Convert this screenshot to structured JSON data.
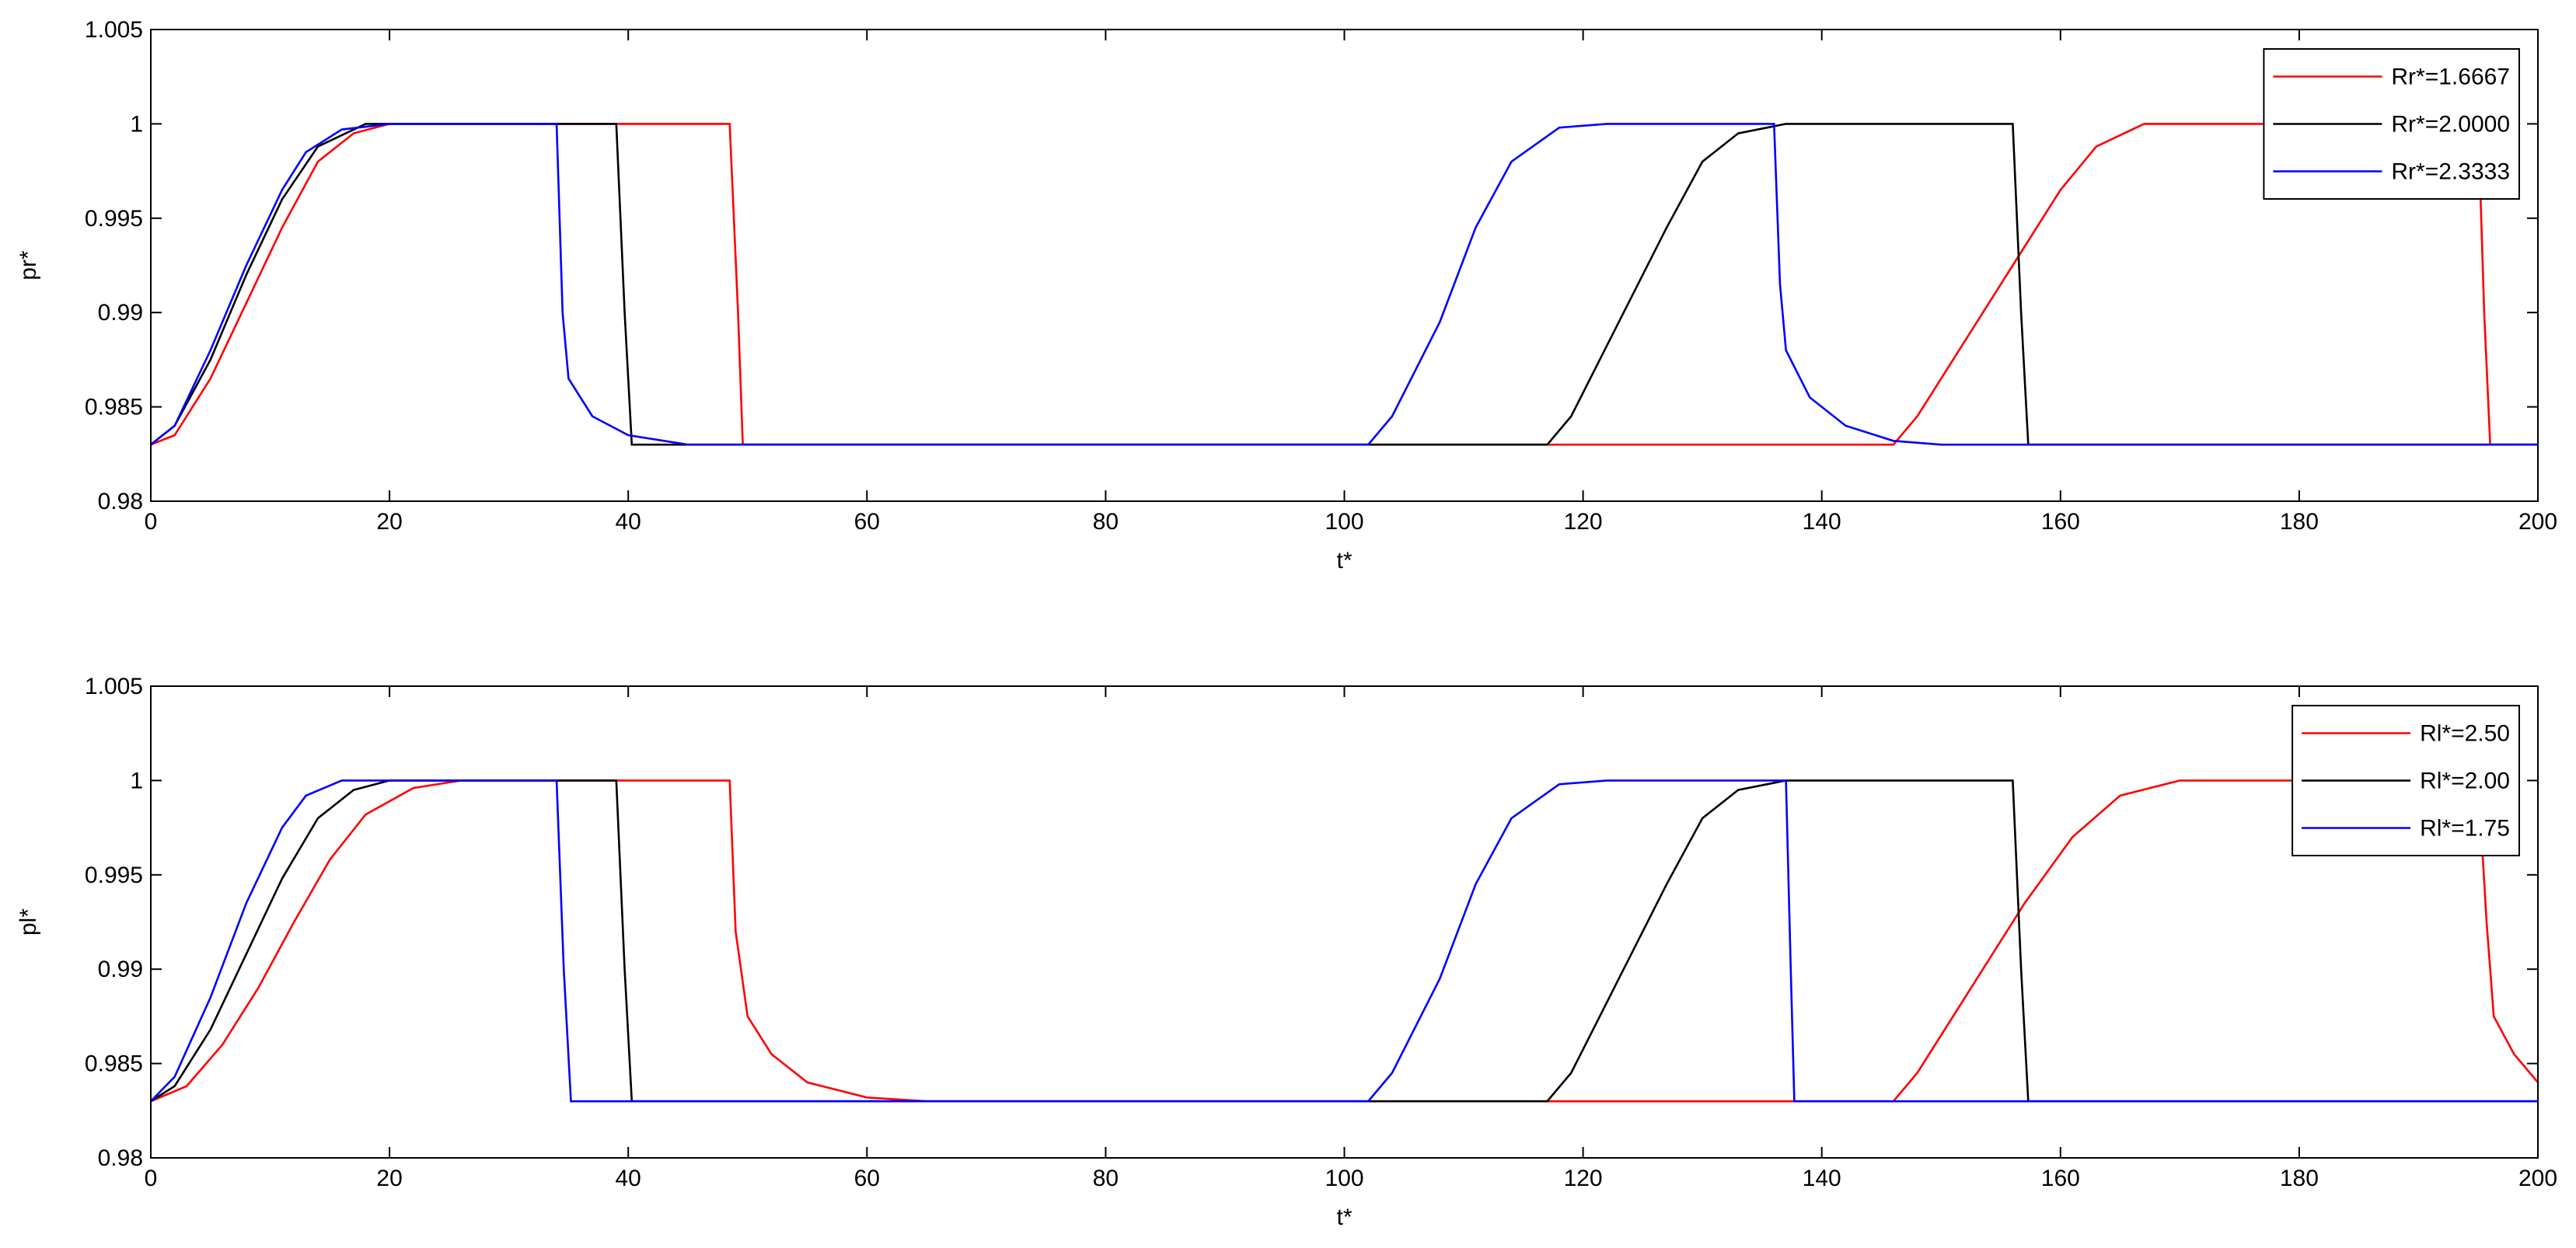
{
  "chart_data": [
    {
      "type": "line",
      "xlabel": "t*",
      "ylabel": "pr*",
      "xlim": [
        0,
        200
      ],
      "ylim": [
        0.98,
        1.005
      ],
      "xticks": [
        0,
        20,
        40,
        60,
        80,
        100,
        120,
        140,
        160,
        180,
        200
      ],
      "yticks": [
        0.98,
        0.985,
        0.99,
        0.995,
        1,
        1.005
      ],
      "legend": "upper right",
      "series": [
        {
          "name": "Rr*=1.6667",
          "color": "#ff0000",
          "x": [
            0,
            2,
            5,
            8,
            11,
            14,
            17,
            20,
            48.5,
            49.2,
            49.6,
            146,
            148,
            152,
            156,
            160,
            163,
            167,
            195,
            195.5,
            196,
            200
          ],
          "values": [
            0.983,
            0.9835,
            0.9865,
            0.9905,
            0.9945,
            0.998,
            0.9995,
            1,
            1,
            0.99,
            0.983,
            0.983,
            0.9845,
            0.9885,
            0.9925,
            0.9965,
            0.9988,
            1,
            1,
            0.99,
            0.983,
            0.983
          ]
        },
        {
          "name": "Rr*=2.0000",
          "color": "#000000",
          "x": [
            0,
            2,
            5,
            8,
            11,
            14,
            18,
            39,
            39.7,
            40.3,
            117,
            119,
            123,
            127,
            130,
            133,
            137,
            156,
            156.7,
            157.3,
            200
          ],
          "values": [
            0.983,
            0.984,
            0.9875,
            0.992,
            0.996,
            0.9988,
            1,
            1,
            0.99,
            0.983,
            0.983,
            0.9845,
            0.9895,
            0.9945,
            0.998,
            0.9995,
            1,
            1,
            0.99,
            0.983,
            0.983
          ]
        },
        {
          "name": "Rr*=2.3333",
          "color": "#0000ff",
          "x": [
            0,
            2,
            5,
            8,
            11,
            13,
            16,
            20,
            34,
            34.5,
            35,
            37,
            40,
            45,
            102,
            104,
            108,
            111,
            114,
            118,
            122,
            136,
            136.5,
            137,
            139,
            142,
            146,
            150,
            200
          ],
          "values": [
            0.983,
            0.984,
            0.988,
            0.9925,
            0.9965,
            0.9985,
            0.9997,
            1,
            1,
            0.99,
            0.9865,
            0.9845,
            0.9835,
            0.983,
            0.983,
            0.9845,
            0.9895,
            0.9945,
            0.998,
            0.9998,
            1,
            1,
            0.9915,
            0.988,
            0.9855,
            0.984,
            0.9832,
            0.983,
            0.983
          ]
        }
      ]
    },
    {
      "type": "line",
      "xlabel": "t*",
      "ylabel": "pl*",
      "xlim": [
        0,
        200
      ],
      "ylim": [
        0.98,
        1.005
      ],
      "xticks": [
        0,
        20,
        40,
        60,
        80,
        100,
        120,
        140,
        160,
        180,
        200
      ],
      "yticks": [
        0.98,
        0.985,
        0.99,
        0.995,
        1,
        1.005
      ],
      "legend": "upper right",
      "series": [
        {
          "name": "Rl*=2.50",
          "color": "#ff0000",
          "x": [
            0,
            3,
            6,
            9,
            12,
            15,
            18,
            22,
            26,
            48.5,
            49,
            50,
            52,
            55,
            60,
            65,
            146,
            148,
            152,
            157,
            161,
            165,
            170,
            195,
            195.7,
            196.3,
            198,
            200
          ],
          "values": [
            0.983,
            0.9838,
            0.986,
            0.989,
            0.9925,
            0.9958,
            0.9982,
            0.9996,
            1,
            1,
            0.992,
            0.9875,
            0.9855,
            0.984,
            0.9832,
            0.983,
            0.983,
            0.9845,
            0.9885,
            0.9935,
            0.997,
            0.9992,
            1,
            1,
            0.9925,
            0.9875,
            0.9855,
            0.984
          ]
        },
        {
          "name": "Rl*=2.00",
          "color": "#000000",
          "x": [
            0,
            2,
            5,
            8,
            11,
            14,
            17,
            20,
            39,
            39.7,
            40.3,
            117,
            119,
            123,
            127,
            130,
            133,
            137,
            156,
            156.7,
            157.3,
            200
          ],
          "values": [
            0.983,
            0.9838,
            0.9868,
            0.9908,
            0.9948,
            0.998,
            0.9995,
            1,
            1,
            0.99,
            0.983,
            0.983,
            0.9845,
            0.9895,
            0.9945,
            0.998,
            0.9995,
            1,
            1,
            0.99,
            0.983,
            0.983
          ]
        },
        {
          "name": "Rl*=1.75",
          "color": "#0000ff",
          "x": [
            0,
            2,
            5,
            8,
            11,
            13,
            16,
            34,
            34.6,
            35.2,
            102,
            104,
            108,
            111,
            114,
            118,
            122,
            137,
            137.4,
            137.7,
            200
          ],
          "values": [
            0.983,
            0.9843,
            0.9885,
            0.9935,
            0.9975,
            0.9992,
            1,
            1,
            0.99,
            0.983,
            0.983,
            0.9845,
            0.9895,
            0.9945,
            0.998,
            0.9998,
            1,
            1,
            0.99,
            0.983,
            0.983
          ]
        }
      ]
    }
  ]
}
